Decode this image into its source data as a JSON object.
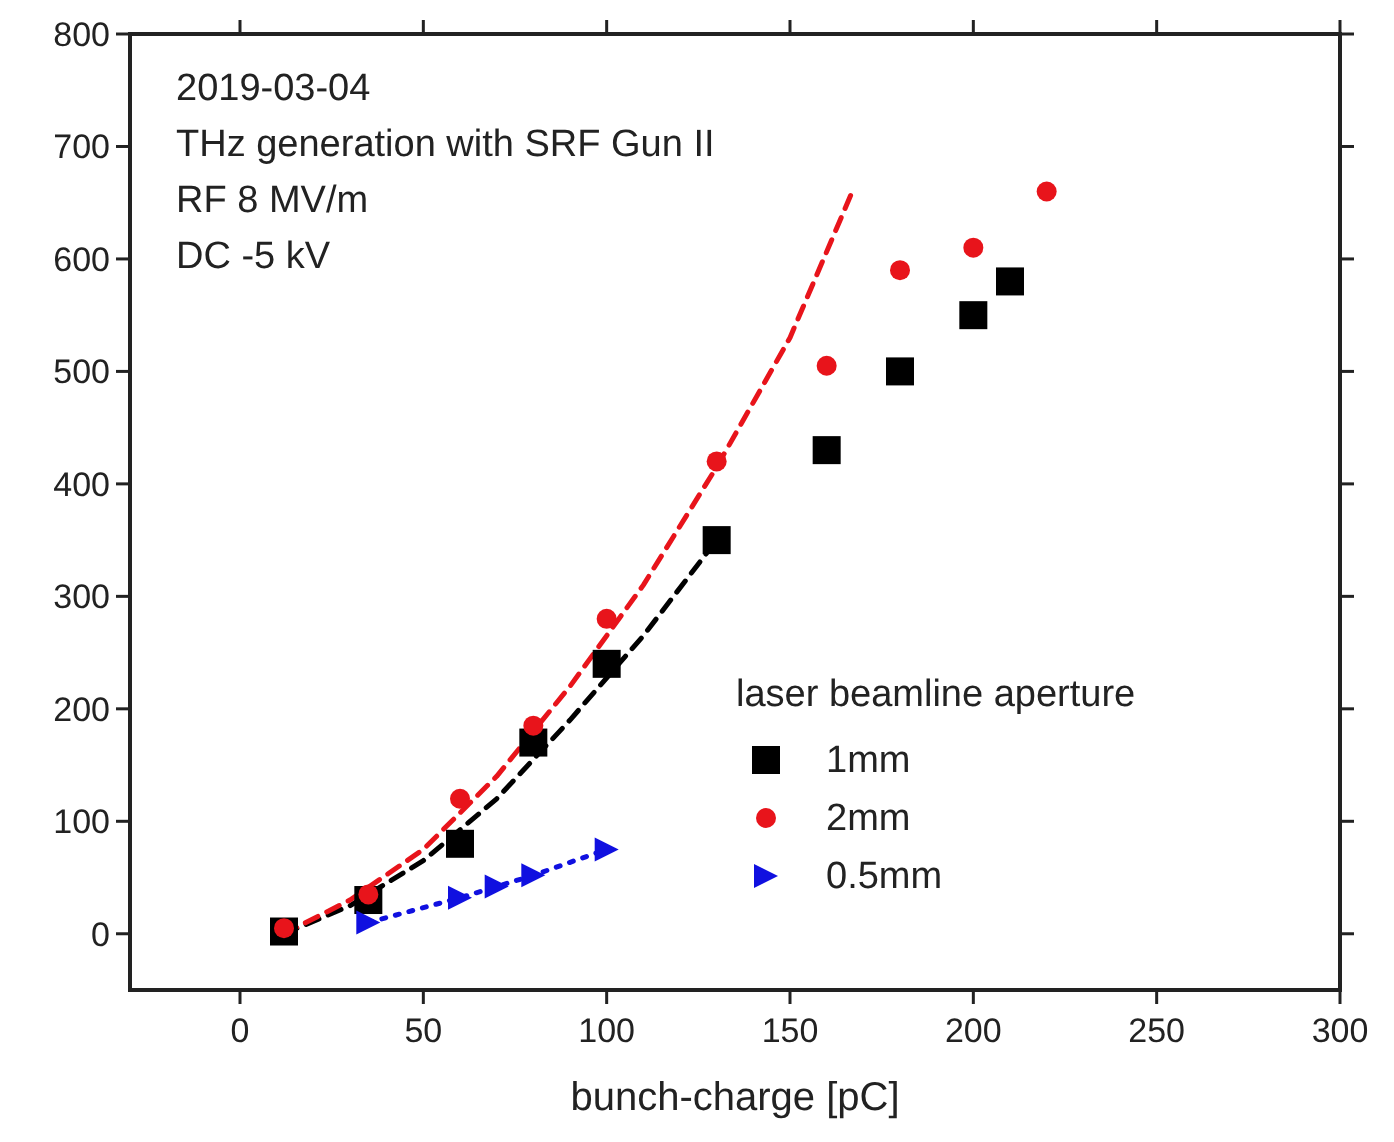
{
  "chart_data": {
    "type": "scatter",
    "xlabel": "bunch-charge [pC]",
    "legend_title": "laser beamline aperture",
    "legend": "bottom right",
    "grid": false,
    "annotations": [
      "2019-03-04",
      "THz generation with SRF Gun II",
      "RF 8 MV/m",
      "DC -5 kV"
    ],
    "xlim": [
      -30,
      300
    ],
    "xticks": [
      0,
      50,
      100,
      150,
      200,
      250,
      300
    ],
    "ylim": [
      -50,
      800
    ],
    "yticks": [
      0,
      100,
      200,
      300,
      400,
      500,
      600,
      700,
      800
    ],
    "series": [
      {
        "type": "line",
        "color": "#000000",
        "marker": "none",
        "line_style": "dashed",
        "x": [
          12,
          30,
          50,
          70,
          90,
          110,
          130
        ],
        "values": [
          0,
          25,
          65,
          120,
          190,
          265,
          350
        ]
      },
      {
        "type": "line",
        "color": "#e8141b",
        "marker": "none",
        "line_style": "dashed",
        "x": [
          12,
          30,
          50,
          70,
          90,
          110,
          130,
          150,
          167
        ],
        "values": [
          0,
          30,
          75,
          140,
          220,
          310,
          415,
          530,
          660
        ]
      },
      {
        "name": "1mm",
        "type": "scatter",
        "color": "#000000",
        "marker": "square",
        "x": [
          12,
          35,
          60,
          80,
          100,
          130,
          160,
          180,
          200,
          210
        ],
        "values": [
          2,
          30,
          80,
          170,
          240,
          350,
          430,
          500,
          550,
          580
        ]
      },
      {
        "name": "2mm",
        "type": "scatter",
        "color": "#e8141b",
        "marker": "circle",
        "x": [
          12,
          35,
          60,
          80,
          100,
          130,
          160,
          180,
          200,
          220
        ],
        "values": [
          5,
          35,
          120,
          185,
          280,
          420,
          505,
          590,
          610,
          660
        ]
      },
      {
        "name": "0.5mm",
        "type": "line",
        "color": "#1010e0",
        "marker": "triangle",
        "line_style": "dotted",
        "x": [
          35,
          60,
          70,
          80,
          100
        ],
        "values": [
          10,
          32,
          42,
          52,
          75
        ]
      }
    ]
  }
}
